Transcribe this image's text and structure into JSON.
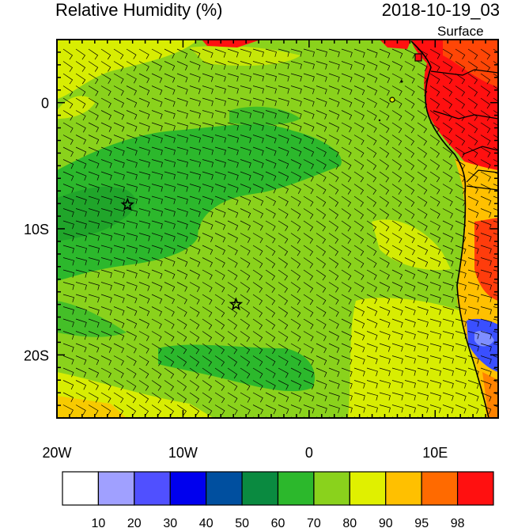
{
  "header": {
    "title": "Relative Humidity (%)",
    "datetime": "2018-10-19_03",
    "level": "Surface"
  },
  "axes": {
    "lon_ticks": [
      {
        "value": -20,
        "label": "20W"
      },
      {
        "value": -10,
        "label": "10W"
      },
      {
        "value": 0,
        "label": "0"
      },
      {
        "value": 10,
        "label": "10E"
      }
    ],
    "lat_ticks": [
      {
        "value": 0,
        "label": "0"
      },
      {
        "value": -10,
        "label": "10S"
      },
      {
        "value": -20,
        "label": "20S"
      }
    ],
    "lon_range": [
      -20,
      15
    ],
    "lat_range": [
      -25,
      5
    ]
  },
  "colorbar": {
    "labels": [
      "10",
      "20",
      "30",
      "40",
      "50",
      "60",
      "70",
      "80",
      "90",
      "95",
      "98"
    ],
    "colors": [
      "#ffffff",
      "#a0a0ff",
      "#5050ff",
      "#0000ee",
      "#004f9f",
      "#0a8a40",
      "#2cb82c",
      "#8ad21c",
      "#e0f000",
      "#ffc000",
      "#ff6a00",
      "#ff1010"
    ]
  },
  "markers": [
    {
      "name": "star-1",
      "lon": -14.4,
      "lat": -8.1
    },
    {
      "name": "star-2",
      "lon": -5.8,
      "lat": -16.0
    }
  ]
}
